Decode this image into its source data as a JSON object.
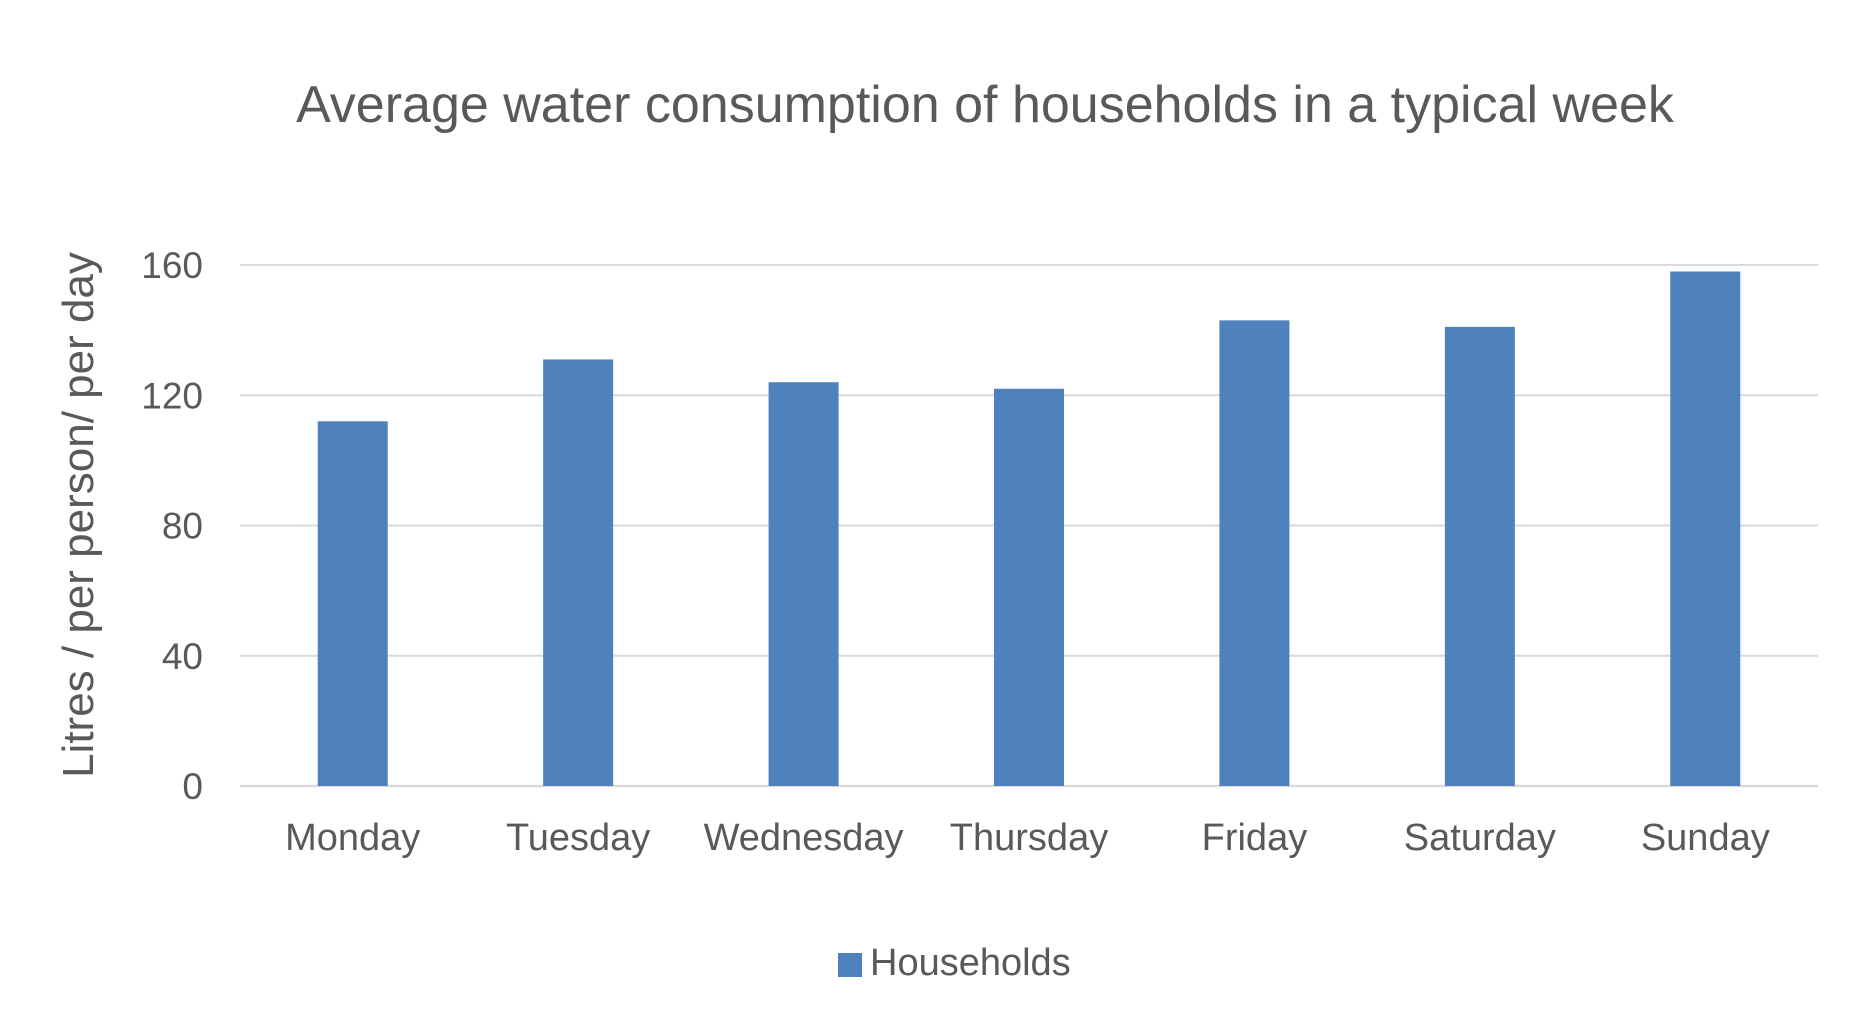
{
  "chart_data": {
    "type": "bar",
    "title": "Average water consumption of households in a typical week",
    "ylabel": "Litres / per person/ per day",
    "xlabel": "",
    "categories": [
      "Monday",
      "Tuesday",
      "Wednesday",
      "Thursday",
      "Friday",
      "Saturday",
      "Sunday"
    ],
    "series": [
      {
        "name": "Households",
        "values": [
          112,
          131,
          124,
          122,
          143,
          141,
          158
        ],
        "color": "#4f81bd"
      }
    ],
    "ylim": [
      0,
      160
    ],
    "yticks": [
      "0",
      "40",
      "80",
      "120",
      "160"
    ],
    "grid": true,
    "legend": "bottom-center",
    "colors": {
      "bar": "#4f81bd",
      "grid": "#d9d9d9",
      "text": "#595959"
    }
  }
}
